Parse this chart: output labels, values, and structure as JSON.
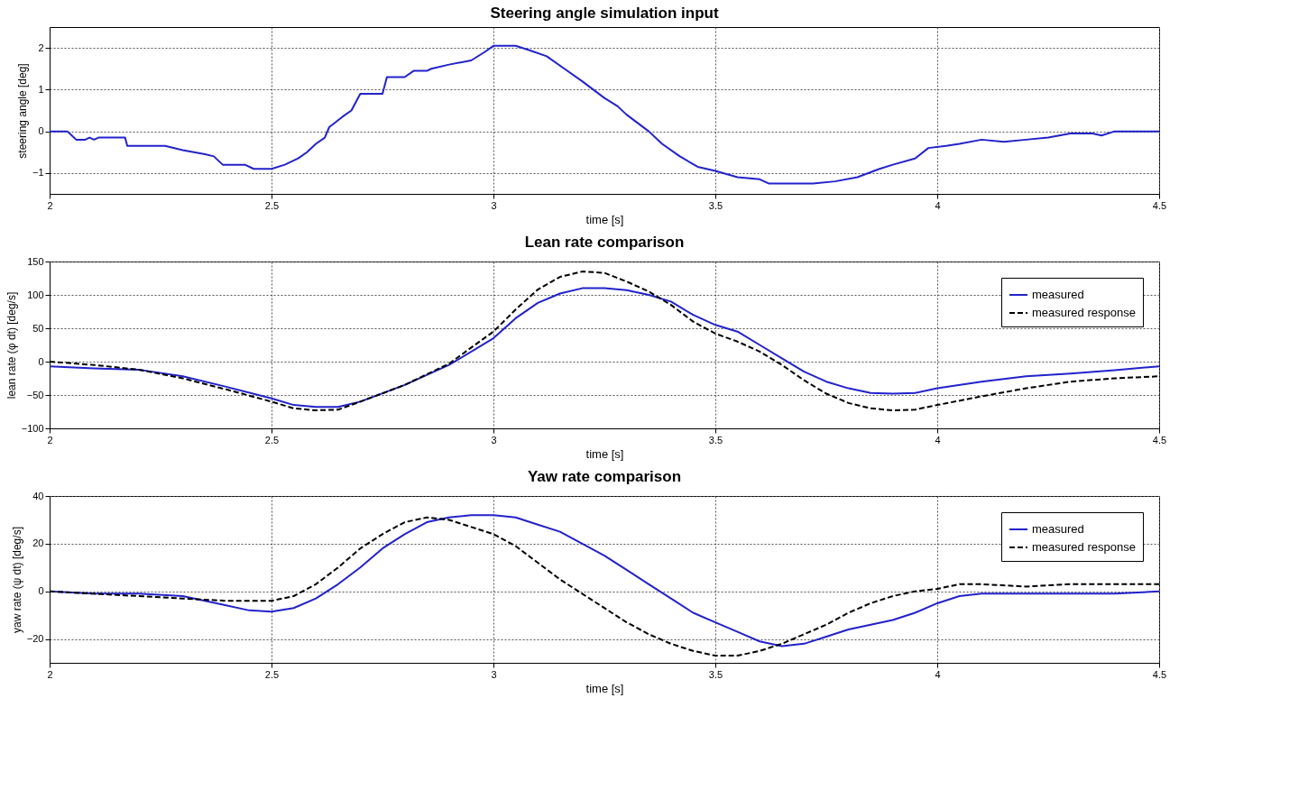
{
  "chart_data": [
    {
      "type": "line",
      "title": "Steering angle simulation input",
      "xlabel": "time [s]",
      "ylabel": "steering angle [deg]",
      "xlim": [
        2,
        4.5
      ],
      "xticks": [
        2,
        2.5,
        3,
        3.5,
        4,
        4.5
      ],
      "ylim": [
        -1.5,
        2.5
      ],
      "yticks": [
        -1,
        0,
        1,
        2
      ],
      "grid": true,
      "legend": false,
      "x": [
        2.0,
        2.04,
        2.05,
        2.06,
        2.08,
        2.09,
        2.1,
        2.11,
        2.17,
        2.175,
        2.26,
        2.3,
        2.35,
        2.37,
        2.39,
        2.44,
        2.46,
        2.5,
        2.53,
        2.56,
        2.58,
        2.6,
        2.62,
        2.63,
        2.66,
        2.68,
        2.7,
        2.75,
        2.76,
        2.8,
        2.82,
        2.85,
        2.86,
        2.9,
        2.95,
        2.98,
        3.0,
        3.05,
        3.08,
        3.12,
        3.16,
        3.2,
        3.25,
        3.28,
        3.3,
        3.35,
        3.38,
        3.42,
        3.46,
        3.5,
        3.55,
        3.6,
        3.62,
        3.72,
        3.77,
        3.82,
        3.87,
        3.9,
        3.95,
        3.98,
        4.02,
        4.05,
        4.1,
        4.15,
        4.2,
        4.25,
        4.3,
        4.35,
        4.37,
        4.4,
        4.45,
        4.5
      ],
      "series": [
        {
          "color": "#2222cc",
          "line_style": "solid",
          "values": [
            0,
            0,
            -0.1,
            -0.2,
            -0.2,
            -0.15,
            -0.2,
            -0.15,
            -0.15,
            -0.35,
            -0.35,
            -0.45,
            -0.55,
            -0.6,
            -0.8,
            -0.8,
            -0.9,
            -0.9,
            -0.8,
            -0.65,
            -0.5,
            -0.3,
            -0.15,
            0.1,
            0.35,
            0.5,
            0.9,
            0.9,
            1.3,
            1.3,
            1.45,
            1.45,
            1.5,
            1.6,
            1.7,
            1.9,
            2.05,
            2.05,
            1.95,
            1.8,
            1.5,
            1.2,
            0.8,
            0.6,
            0.4,
            0.0,
            -0.3,
            -0.6,
            -0.85,
            -0.95,
            -1.1,
            -1.15,
            -1.25,
            -1.25,
            -1.2,
            -1.1,
            -0.9,
            -0.8,
            -0.65,
            -0.4,
            -0.35,
            -0.3,
            -0.2,
            -0.25,
            -0.2,
            -0.15,
            -0.05,
            -0.05,
            -0.1,
            0,
            0,
            0
          ]
        }
      ]
    },
    {
      "type": "line",
      "title": "Lean rate comparison",
      "xlabel": "time [s]",
      "ylabel": "lean rate (φ dt) [deg/s]",
      "xlim": [
        2,
        4.5
      ],
      "xticks": [
        2,
        2.5,
        3,
        3.5,
        4,
        4.5
      ],
      "ylim": [
        -100,
        150
      ],
      "yticks": [
        -100,
        -50,
        0,
        50,
        100,
        150
      ],
      "grid": true,
      "legend": "top right",
      "x": [
        2.0,
        2.1,
        2.2,
        2.3,
        2.4,
        2.5,
        2.55,
        2.6,
        2.65,
        2.7,
        2.8,
        2.9,
        3.0,
        3.05,
        3.1,
        3.15,
        3.2,
        3.25,
        3.3,
        3.35,
        3.4,
        3.45,
        3.5,
        3.55,
        3.6,
        3.65,
        3.7,
        3.75,
        3.8,
        3.85,
        3.9,
        3.95,
        4.0,
        4.1,
        4.2,
        4.3,
        4.4,
        4.5
      ],
      "series": [
        {
          "name": "measured",
          "color": "#2222cc",
          "line_style": "solid",
          "values": [
            -7,
            -10,
            -12,
            -22,
            -38,
            -55,
            -65,
            -68,
            -68,
            -60,
            -35,
            -5,
            35,
            65,
            88,
            102,
            110,
            110,
            107,
            100,
            90,
            70,
            55,
            45,
            25,
            5,
            -15,
            -30,
            -40,
            -47,
            -48,
            -47,
            -40,
            -30,
            -22,
            -18,
            -13,
            -7
          ]
        },
        {
          "name": "measured response",
          "color": "#000000",
          "line_style": "dashed",
          "values": [
            0,
            -5,
            -12,
            -25,
            -42,
            -60,
            -70,
            -73,
            -72,
            -60,
            -35,
            -3,
            45,
            78,
            108,
            127,
            135,
            133,
            120,
            105,
            85,
            60,
            42,
            30,
            15,
            -5,
            -28,
            -48,
            -62,
            -70,
            -73,
            -72,
            -65,
            -52,
            -40,
            -30,
            -25,
            -22
          ]
        }
      ]
    },
    {
      "type": "line",
      "title": "Yaw rate comparison",
      "xlabel": "time [s]",
      "ylabel": "yaw rate (ψ dt) [deg/s]",
      "xlim": [
        2,
        4.5
      ],
      "xticks": [
        2,
        2.5,
        3,
        3.5,
        4,
        4.5
      ],
      "ylim": [
        -30,
        40
      ],
      "yticks": [
        -20,
        0,
        20,
        40
      ],
      "grid": true,
      "legend": "top right",
      "x": [
        2.0,
        2.1,
        2.2,
        2.3,
        2.4,
        2.45,
        2.5,
        2.55,
        2.6,
        2.65,
        2.7,
        2.75,
        2.8,
        2.85,
        2.9,
        2.95,
        3.0,
        3.05,
        3.1,
        3.15,
        3.2,
        3.25,
        3.3,
        3.35,
        3.4,
        3.45,
        3.5,
        3.55,
        3.6,
        3.65,
        3.7,
        3.75,
        3.8,
        3.85,
        3.9,
        3.95,
        4.0,
        4.05,
        4.1,
        4.2,
        4.3,
        4.4,
        4.5
      ],
      "series": [
        {
          "name": "measured",
          "color": "#2222cc",
          "line_style": "solid",
          "values": [
            0,
            -1,
            -1,
            -2,
            -6,
            -8,
            -8.5,
            -7,
            -3,
            3,
            10,
            18,
            24,
            29,
            31,
            32,
            32,
            31,
            28,
            25,
            20,
            15,
            9,
            3,
            -3,
            -9,
            -13,
            -17,
            -21,
            -23,
            -22,
            -19,
            -16,
            -14,
            -12,
            -9,
            -5,
            -2,
            -1,
            -1,
            -1,
            -1,
            0
          ]
        },
        {
          "name": "measured response",
          "color": "#000000",
          "line_style": "dashed",
          "values": [
            0,
            -1,
            -2,
            -3,
            -4,
            -4,
            -4,
            -2,
            3,
            10,
            18,
            24,
            29,
            31,
            30,
            27,
            24,
            19,
            12,
            5,
            -1,
            -7,
            -13,
            -18,
            -22,
            -25,
            -27,
            -27,
            -25,
            -22,
            -18,
            -14,
            -9,
            -5,
            -2,
            0,
            1,
            3,
            3,
            2,
            3,
            3,
            3
          ]
        }
      ]
    }
  ]
}
